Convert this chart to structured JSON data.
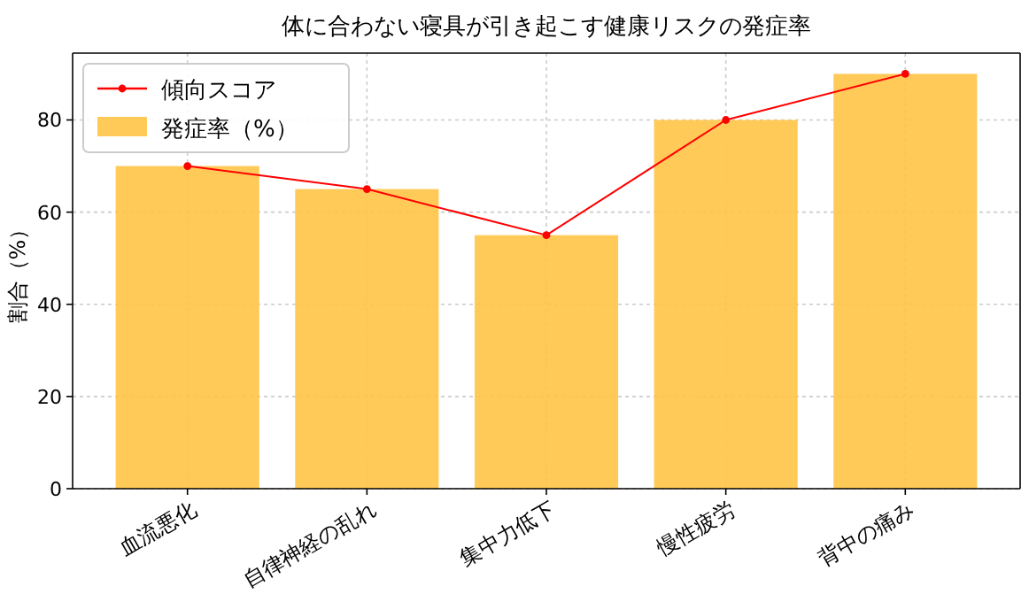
{
  "chart_data": {
    "type": "bar",
    "title": "体に合わない寝具が引き起こす健康リスクの発症率",
    "ylabel": "割合（%）",
    "categories": [
      "血流悪化",
      "自律神経の乱れ",
      "集中力低下",
      "慢性疲労",
      "背中の痛み"
    ],
    "series": [
      {
        "name": "傾向スコア",
        "type": "line",
        "color": "#ff0000",
        "marker": "circle",
        "values": [
          70,
          65,
          55,
          80,
          90
        ]
      },
      {
        "name": "発症率（%）",
        "color": "#ffc445",
        "values": [
          70,
          65,
          55,
          80,
          90
        ]
      }
    ],
    "ylim": [
      0,
      94.5
    ],
    "yticks": [
      0,
      20,
      40,
      60,
      80
    ],
    "grid": true,
    "legend": "top left"
  }
}
